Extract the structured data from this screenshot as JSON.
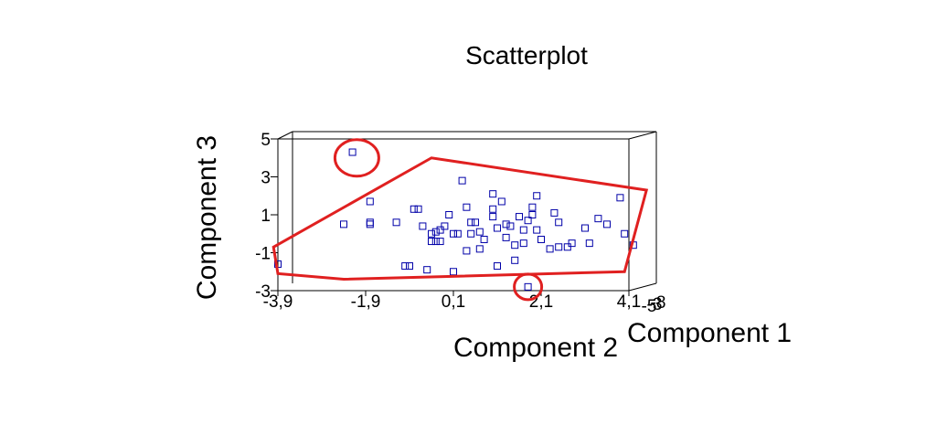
{
  "chart_data": {
    "type": "scatter",
    "title": "Scatterplot",
    "xlabel": "Component 2",
    "ylabel": "Component 3",
    "zlabel": "Component 1",
    "x_ticks": [
      "-3,9",
      "-1,9",
      "0,1",
      "2,1",
      "4,1"
    ],
    "y_ticks": [
      "5",
      "3",
      "1",
      "-1",
      "-3"
    ],
    "z_ticks": [
      "-3",
      "-5",
      "-8"
    ],
    "xlim": [
      -3.9,
      4.1
    ],
    "ylim": [
      -3,
      5
    ],
    "marker": "hollow-square",
    "point_color": "#0000a8",
    "annotation_color": "#e02020",
    "points": [
      {
        "x": -3.9,
        "y": -1.6
      },
      {
        "x": -2.4,
        "y": 0.5
      },
      {
        "x": -2.2,
        "y": 4.3
      },
      {
        "x": -1.8,
        "y": 1.7
      },
      {
        "x": -1.8,
        "y": 0.5
      },
      {
        "x": -1.8,
        "y": 0.6
      },
      {
        "x": -1.2,
        "y": 0.6
      },
      {
        "x": -1.0,
        "y": -1.7
      },
      {
        "x": -0.9,
        "y": -1.7
      },
      {
        "x": -0.8,
        "y": 1.3
      },
      {
        "x": -0.7,
        "y": 1.3
      },
      {
        "x": -0.6,
        "y": 0.4
      },
      {
        "x": -0.5,
        "y": -1.9
      },
      {
        "x": -0.4,
        "y": 0.0
      },
      {
        "x": -0.4,
        "y": -0.4
      },
      {
        "x": -0.3,
        "y": 0.1
      },
      {
        "x": -0.3,
        "y": -0.4
      },
      {
        "x": -0.2,
        "y": 0.2
      },
      {
        "x": -0.2,
        "y": -0.4
      },
      {
        "x": -0.1,
        "y": 0.4
      },
      {
        "x": 0.0,
        "y": 1.0
      },
      {
        "x": 0.1,
        "y": -2.0
      },
      {
        "x": 0.1,
        "y": 0.0
      },
      {
        "x": 0.2,
        "y": 0.0
      },
      {
        "x": 0.3,
        "y": 2.8
      },
      {
        "x": 0.4,
        "y": 1.4
      },
      {
        "x": 0.4,
        "y": -0.9
      },
      {
        "x": 0.5,
        "y": 0.6
      },
      {
        "x": 0.5,
        "y": 0.0
      },
      {
        "x": 0.6,
        "y": 0.6
      },
      {
        "x": 0.7,
        "y": 0.1
      },
      {
        "x": 0.7,
        "y": -0.8
      },
      {
        "x": 0.8,
        "y": -0.3
      },
      {
        "x": 1.0,
        "y": 2.1
      },
      {
        "x": 1.0,
        "y": 1.3
      },
      {
        "x": 1.0,
        "y": 0.9
      },
      {
        "x": 1.1,
        "y": 0.3
      },
      {
        "x": 1.1,
        "y": -1.7
      },
      {
        "x": 1.2,
        "y": 1.7
      },
      {
        "x": 1.3,
        "y": 0.5
      },
      {
        "x": 1.3,
        "y": -0.2
      },
      {
        "x": 1.4,
        "y": 0.4
      },
      {
        "x": 1.5,
        "y": -0.6
      },
      {
        "x": 1.5,
        "y": -1.4
      },
      {
        "x": 1.6,
        "y": 0.9
      },
      {
        "x": 1.7,
        "y": 0.2
      },
      {
        "x": 1.7,
        "y": -0.5
      },
      {
        "x": 1.8,
        "y": 0.7
      },
      {
        "x": 1.9,
        "y": 1.4
      },
      {
        "x": 1.9,
        "y": 1.0
      },
      {
        "x": 2.0,
        "y": 2.0
      },
      {
        "x": 2.0,
        "y": 0.2
      },
      {
        "x": 2.1,
        "y": -0.3
      },
      {
        "x": 1.8,
        "y": -2.8
      },
      {
        "x": 2.3,
        "y": -0.8
      },
      {
        "x": 2.4,
        "y": 1.1
      },
      {
        "x": 2.5,
        "y": 0.6
      },
      {
        "x": 2.5,
        "y": -0.7
      },
      {
        "x": 2.7,
        "y": -0.7
      },
      {
        "x": 2.8,
        "y": -0.5
      },
      {
        "x": 3.1,
        "y": 0.3
      },
      {
        "x": 3.2,
        "y": -0.5
      },
      {
        "x": 3.4,
        "y": 0.8
      },
      {
        "x": 3.6,
        "y": 0.5
      },
      {
        "x": 3.9,
        "y": 1.9
      },
      {
        "x": 4.0,
        "y": 0.0
      },
      {
        "x": 4.2,
        "y": -0.6
      }
    ],
    "annotation_polygon": [
      {
        "x": -4.0,
        "y": -0.7
      },
      {
        "x": -0.4,
        "y": 4.0
      },
      {
        "x": 4.5,
        "y": 2.3
      },
      {
        "x": 4.0,
        "y": -2.0
      },
      {
        "x": -2.4,
        "y": -2.4
      },
      {
        "x": -3.9,
        "y": -2.1
      }
    ],
    "annotation_circles": [
      {
        "x": -2.1,
        "y": 4.0
      },
      {
        "x": 1.8,
        "y": -2.8
      }
    ]
  }
}
